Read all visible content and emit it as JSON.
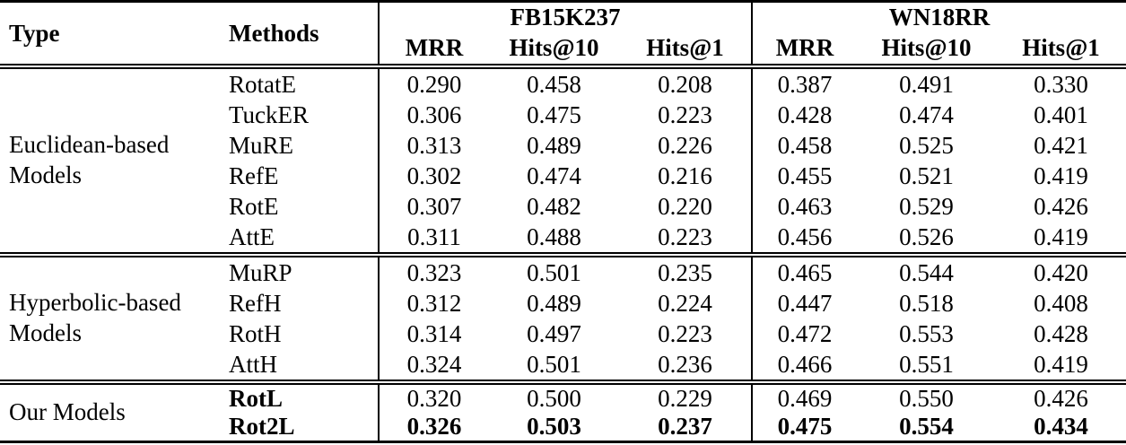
{
  "table": {
    "header": {
      "type": "Type",
      "methods": "Methods",
      "groups": [
        {
          "label": "FB15K237"
        },
        {
          "label": "WN18RR"
        }
      ],
      "metrics": [
        "MRR",
        "Hits@10",
        "Hits@1",
        "MRR",
        "Hits@10",
        "Hits@1"
      ]
    },
    "sections": [
      {
        "type_label": "Euclidean-based Models",
        "rows": [
          {
            "method": "RotatE",
            "values": [
              "0.290",
              "0.458",
              "0.208",
              "0.387",
              "0.491",
              "0.330"
            ]
          },
          {
            "method": "TuckER",
            "values": [
              "0.306",
              "0.475",
              "0.223",
              "0.428",
              "0.474",
              "0.401"
            ]
          },
          {
            "method": "MuRE",
            "values": [
              "0.313",
              "0.489",
              "0.226",
              "0.458",
              "0.525",
              "0.421"
            ]
          },
          {
            "method": "RefE",
            "values": [
              "0.302",
              "0.474",
              "0.216",
              "0.455",
              "0.521",
              "0.419"
            ]
          },
          {
            "method": "RotE",
            "values": [
              "0.307",
              "0.482",
              "0.220",
              "0.463",
              "0.529",
              "0.426"
            ]
          },
          {
            "method": "AttE",
            "values": [
              "0.311",
              "0.488",
              "0.223",
              "0.456",
              "0.526",
              "0.419"
            ]
          }
        ]
      },
      {
        "type_label": "Hyperbolic-based Models",
        "rows": [
          {
            "method": "MuRP",
            "values": [
              "0.323",
              "0.501",
              "0.235",
              "0.465",
              "0.544",
              "0.420"
            ]
          },
          {
            "method": "RefH",
            "values": [
              "0.312",
              "0.489",
              "0.224",
              "0.447",
              "0.518",
              "0.408"
            ]
          },
          {
            "method": "RotH",
            "values": [
              "0.314",
              "0.497",
              "0.223",
              "0.472",
              "0.553",
              "0.428"
            ]
          },
          {
            "method": "AttH",
            "values": [
              "0.324",
              "0.501",
              "0.236",
              "0.466",
              "0.551",
              "0.419"
            ]
          }
        ]
      },
      {
        "type_label": "Our Models",
        "rows": [
          {
            "method": "RotL",
            "values": [
              "0.320",
              "0.500",
              "0.229",
              "0.469",
              "0.550",
              "0.426"
            ]
          },
          {
            "method": "Rot2L",
            "values": [
              "0.326",
              "0.503",
              "0.237",
              "0.475",
              "0.554",
              "0.434"
            ]
          }
        ]
      }
    ]
  }
}
